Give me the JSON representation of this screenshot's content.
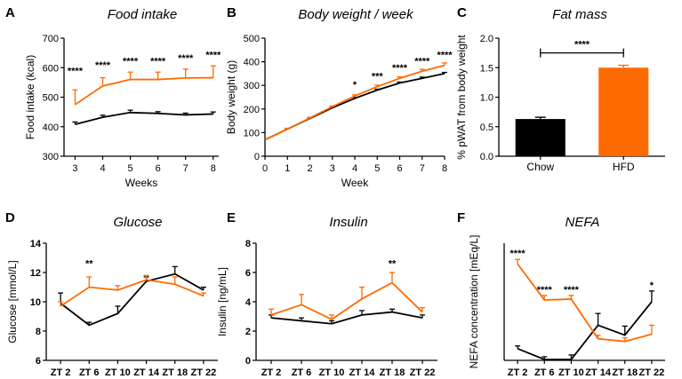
{
  "colors": {
    "chow": "#000000",
    "hfd": "#ff6a00",
    "axis": "#000000"
  },
  "chart_data": [
    {
      "id": "A",
      "type": "line",
      "panel_label": "A",
      "title": "Food intake",
      "xlabel": "Weeks",
      "ylabel": "Food intake (kcal)",
      "x": [
        3,
        4,
        5,
        6,
        7,
        8
      ],
      "xlim": [
        2.6,
        8.2
      ],
      "ylim": [
        300,
        700
      ],
      "xticks": [
        "3",
        "4",
        "5",
        "6",
        "7",
        "8"
      ],
      "yticks": [
        300,
        400,
        500,
        600,
        700
      ],
      "series": [
        {
          "name": "Chow",
          "color": "#000000",
          "values": [
            408,
            432,
            448,
            445,
            440,
            443
          ],
          "errors": [
            8,
            7,
            8,
            6,
            6,
            7
          ]
        },
        {
          "name": "HFD",
          "color": "#ff6a00",
          "values": [
            475,
            538,
            560,
            560,
            565,
            566
          ],
          "errors": [
            50,
            28,
            25,
            25,
            30,
            40
          ]
        }
      ],
      "annotations": [
        {
          "x": 3,
          "y": 578,
          "text": "****"
        },
        {
          "x": 4,
          "y": 598,
          "text": "****"
        },
        {
          "x": 5,
          "y": 612,
          "text": "****"
        },
        {
          "x": 6,
          "y": 612,
          "text": "****"
        },
        {
          "x": 7,
          "y": 622,
          "text": "****"
        },
        {
          "x": 8,
          "y": 632,
          "text": "****"
        }
      ]
    },
    {
      "id": "B",
      "type": "line",
      "panel_label": "B",
      "title": "Body weight / week",
      "xlabel": "Week",
      "ylabel": "Body weight (g)",
      "x": [
        0,
        1,
        2,
        3,
        4,
        5,
        6,
        7,
        8
      ],
      "xlim": [
        0,
        8
      ],
      "ylim": [
        0,
        500
      ],
      "xticks": [
        "0",
        "1",
        "2",
        "3",
        "4",
        "5",
        "6",
        "7",
        "8"
      ],
      "yticks": [
        0,
        100,
        200,
        300,
        400,
        500
      ],
      "series": [
        {
          "name": "Chow",
          "color": "#000000",
          "values": [
            70,
            115,
            160,
            205,
            245,
            280,
            310,
            330,
            350
          ],
          "errors": [
            0,
            3,
            3,
            3,
            4,
            4,
            4,
            5,
            5
          ]
        },
        {
          "name": "HFD",
          "color": "#ff6a00",
          "values": [
            70,
            115,
            162,
            210,
            255,
            295,
            330,
            360,
            385
          ],
          "errors": [
            0,
            3,
            3,
            3,
            5,
            6,
            6,
            8,
            10
          ]
        }
      ],
      "annotations": [
        {
          "x": 4,
          "y": 290,
          "text": "*"
        },
        {
          "x": 5,
          "y": 325,
          "text": "***"
        },
        {
          "x": 6,
          "y": 360,
          "text": "****"
        },
        {
          "x": 7,
          "y": 390,
          "text": "****"
        },
        {
          "x": 8,
          "y": 415,
          "text": "****"
        }
      ]
    },
    {
      "id": "C",
      "type": "bar",
      "panel_label": "C",
      "title": "Fat mass",
      "xlabel": "",
      "ylabel": "% pWAT from body weight",
      "categories": [
        "Chow",
        "HFD"
      ],
      "ylim": [
        0,
        2.0
      ],
      "yticks": [
        "0.0",
        "0.5",
        "1.0",
        "1.5",
        "2.0"
      ],
      "values": [
        0.63,
        1.5
      ],
      "errors": [
        0.03,
        0.04
      ],
      "bar_colors": [
        "#000000",
        "#ff6a00"
      ],
      "significance": {
        "text": "****",
        "y": 1.75
      }
    },
    {
      "id": "D",
      "type": "line",
      "panel_label": "D",
      "title": "Glucose",
      "xlabel": "",
      "ylabel": "Glucose [mmol/L]",
      "categories": [
        "ZT 2",
        "ZT 6",
        "ZT 10",
        "ZT 14",
        "ZT 18",
        "ZT 22"
      ],
      "ylim": [
        6,
        14
      ],
      "yticks": [
        6,
        8,
        10,
        12,
        14
      ],
      "series": [
        {
          "name": "Chow",
          "color": "#000000",
          "values": [
            9.9,
            8.4,
            9.2,
            11.4,
            11.9,
            10.8
          ],
          "errors": [
            0.7,
            0.2,
            0.5,
            0.3,
            0.5,
            0.2
          ]
        },
        {
          "name": "HFD",
          "color": "#ff6a00",
          "values": [
            9.7,
            11.0,
            10.8,
            11.5,
            11.2,
            10.4
          ],
          "errors": [
            0.3,
            0.7,
            0.3,
            0.3,
            0.5,
            0.2
          ]
        }
      ],
      "annotations": [
        {
          "x": 1,
          "y": 12.4,
          "text": "**"
        }
      ]
    },
    {
      "id": "E",
      "type": "line",
      "panel_label": "E",
      "title": "Insulin",
      "xlabel": "",
      "ylabel": "Insulin [ng/mL]",
      "categories": [
        "ZT 2",
        "ZT 6",
        "ZT 10",
        "ZT 14",
        "ZT 18",
        "ZT 22"
      ],
      "ylim": [
        0,
        8
      ],
      "yticks": [
        0,
        2,
        4,
        6,
        8
      ],
      "series": [
        {
          "name": "Chow",
          "color": "#000000",
          "values": [
            2.9,
            2.7,
            2.5,
            3.1,
            3.3,
            2.9
          ],
          "errors": [
            0.2,
            0.2,
            0.2,
            0.3,
            0.2,
            0.2
          ]
        },
        {
          "name": "HFD",
          "color": "#ff6a00",
          "values": [
            3.1,
            3.8,
            2.8,
            4.2,
            5.3,
            3.3
          ],
          "errors": [
            0.4,
            0.7,
            0.3,
            0.8,
            0.7,
            0.3
          ]
        }
      ],
      "annotations": [
        {
          "x": 4,
          "y": 6.4,
          "text": "**"
        }
      ]
    },
    {
      "id": "F",
      "type": "line",
      "panel_label": "F",
      "title": "NEFA",
      "xlabel": "",
      "ylabel": "NEFA concentration [mEq/L]",
      "categories": [
        "ZT 2",
        "ZT 6",
        "ZT 10",
        "ZT 14",
        "ZT 18",
        "ZT 22"
      ],
      "ylim": [
        0.2,
        1.5
      ],
      "yticks": [],
      "series": [
        {
          "name": "Chow",
          "color": "#000000",
          "values": [
            0.33,
            0.21,
            0.21,
            0.59,
            0.48,
            0.85
          ],
          "errors": [
            0.03,
            0.03,
            0.05,
            0.13,
            0.1,
            0.12
          ]
        },
        {
          "name": "HFD",
          "color": "#ff6a00",
          "values": [
            1.27,
            0.87,
            0.88,
            0.44,
            0.41,
            0.49
          ],
          "errors": [
            0.05,
            0.05,
            0.04,
            0.04,
            0.04,
            0.1
          ]
        }
      ],
      "annotations": [
        {
          "x": 0,
          "y": 1.35,
          "text": "****"
        },
        {
          "x": 1,
          "y": 0.95,
          "text": "****"
        },
        {
          "x": 2,
          "y": 0.95,
          "text": "****"
        },
        {
          "x": 5,
          "y": 1.0,
          "text": "*"
        }
      ]
    }
  ]
}
